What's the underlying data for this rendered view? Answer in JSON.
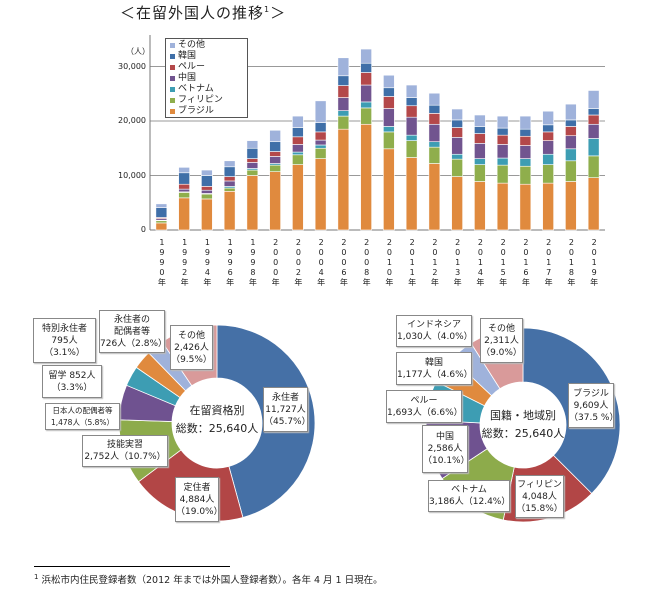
{
  "title": "＜在留外国人の推移",
  "title_sup": "1",
  "chart_data": [
    {
      "type": "bar",
      "stacked": true,
      "ylabel": "（人）",
      "ylim": [
        0,
        35000
      ],
      "yticks": [
        0,
        10000,
        20000,
        30000
      ],
      "ytick_labels": [
        "0",
        "10,000",
        "20,000",
        "30,000"
      ],
      "grid": true,
      "legend_position": "top-left",
      "categories": [
        "1990年",
        "1992年",
        "1994年",
        "1996年",
        "1998年",
        "2000年",
        "2002年",
        "2004年",
        "2006年",
        "2008年",
        "2010年",
        "2011年",
        "2012年",
        "2013年",
        "2014年",
        "2015年",
        "2016年",
        "2017年",
        "2018年",
        "2019年"
      ],
      "series": [
        {
          "name": "ブラジル",
          "color": "#e08a3e",
          "values": [
            1300,
            5900,
            5700,
            7100,
            10000,
            10700,
            12000,
            13100,
            18500,
            19400,
            14900,
            13300,
            12200,
            9800,
            8900,
            8600,
            8400,
            8600,
            8900,
            9600
          ]
        },
        {
          "name": "フィリピン",
          "color": "#8fae4c",
          "values": [
            400,
            1000,
            900,
            600,
            1000,
            1200,
            1800,
            1900,
            2400,
            3000,
            3100,
            3100,
            3000,
            3200,
            3100,
            3300,
            3300,
            3400,
            3800,
            4000
          ]
        },
        {
          "name": "ベトナム",
          "color": "#3d9db3",
          "values": [
            100,
            100,
            100,
            300,
            300,
            300,
            500,
            600,
            1000,
            1100,
            1000,
            1000,
            1000,
            900,
            1100,
            1300,
            1400,
            1900,
            2200,
            3200
          ]
        },
        {
          "name": "中国",
          "color": "#71548f",
          "values": [
            300,
            500,
            600,
            1000,
            1100,
            1300,
            1400,
            900,
            2400,
            3100,
            3300,
            3300,
            3200,
            3100,
            2800,
            2500,
            2400,
            2500,
            2400,
            2600
          ]
        },
        {
          "name": "ペルー",
          "color": "#b4484a",
          "values": [
            200,
            900,
            700,
            800,
            700,
            900,
            1400,
            1500,
            2200,
            2300,
            2200,
            2100,
            2000,
            1800,
            1800,
            1700,
            1700,
            1600,
            1700,
            1700
          ]
        },
        {
          "name": "韓国",
          "color": "#3f6fa8",
          "values": [
            1800,
            2100,
            2000,
            1800,
            1900,
            1800,
            1700,
            1700,
            1800,
            1700,
            1600,
            1500,
            1500,
            1400,
            1300,
            1300,
            1300,
            1300,
            1200,
            1200
          ]
        },
        {
          "name": "その他",
          "color": "#9fb2db",
          "values": [
            700,
            1000,
            1000,
            1100,
            1400,
            2100,
            2100,
            4000,
            3300,
            2600,
            2300,
            2300,
            2200,
            2000,
            2100,
            2200,
            2400,
            2500,
            2900,
            3300
          ]
        }
      ]
    },
    {
      "type": "pie",
      "donut": true,
      "center_text": [
        "在留資格別",
        "総数：25,640人"
      ],
      "slices": [
        {
          "label": "永住者",
          "value": 11727,
          "lines": [
            "永住者",
            "11,727人",
            "（45.7%）"
          ],
          "color": "#4570a6"
        },
        {
          "label": "定住者",
          "value": 4884,
          "lines": [
            "定住者",
            "4,884人",
            "（19.0%）"
          ],
          "color": "#b24646"
        },
        {
          "label": "技能実習",
          "value": 2752,
          "lines": [
            "技能実習",
            "2,752人（10.7%）"
          ],
          "color": "#8dab4b"
        },
        {
          "label": "日本人の配偶者等",
          "value": 1478,
          "lines": [
            "日本人の配偶者等",
            "1,478人（5.8%）"
          ],
          "color": "#6f5290"
        },
        {
          "label": "留学",
          "value": 852,
          "lines": [
            "留学 852人",
            "（3.3%）"
          ],
          "color": "#3d9db3"
        },
        {
          "label": "特別永住者",
          "value": 795,
          "lines": [
            "特別永住者",
            "795人",
            "（3.1%）"
          ],
          "color": "#e08a3e"
        },
        {
          "label": "永住者の配偶者等",
          "value": 726,
          "lines": [
            "永住者の",
            "配偶者等",
            "726人（2.8%）"
          ],
          "color": "#9fb2db"
        },
        {
          "label": "その他",
          "value": 2426,
          "lines": [
            "その他",
            "2,426人",
            "（9.5%）"
          ],
          "color": "#d99a9a"
        }
      ]
    },
    {
      "type": "pie",
      "donut": true,
      "center_text": [
        "国籍・地域別",
        "総数：25,640人"
      ],
      "slices": [
        {
          "label": "ブラジル",
          "value": 9609,
          "lines": [
            "ブラジル",
            "9,609人",
            "（37.5 %）"
          ],
          "color": "#4570a6"
        },
        {
          "label": "フィリピン",
          "value": 4048,
          "lines": [
            "フィリピン",
            "4,048人",
            "（15.8%）"
          ],
          "color": "#b24646"
        },
        {
          "label": "ベトナム",
          "value": 3186,
          "lines": [
            "ベトナム",
            "3,186人（12.4%）"
          ],
          "color": "#8dab4b"
        },
        {
          "label": "中国",
          "value": 2586,
          "lines": [
            "中国",
            "2,586人",
            "（10.1%）"
          ],
          "color": "#6f5290"
        },
        {
          "label": "ペルー",
          "value": 1693,
          "lines": [
            "ペルー",
            "1,693人（6.6%）"
          ],
          "color": "#3d9db3"
        },
        {
          "label": "韓国",
          "value": 1177,
          "lines": [
            "韓国",
            "1,177人（4.6%）"
          ],
          "color": "#e08a3e"
        },
        {
          "label": "インドネシア",
          "value": 1030,
          "lines": [
            "インドネシア",
            "1,030人（4.0%）"
          ],
          "color": "#9fb2db"
        },
        {
          "label": "その他",
          "value": 2311,
          "lines": [
            "その他",
            "2,311人",
            "（9.0%）"
          ],
          "color": "#d99a9a"
        }
      ]
    }
  ],
  "footnote": {
    "sup": "1",
    "text": "浜松市内住民登録者数（2012 年までは外国人登録者数）。各年 4 月 1 日現在。"
  }
}
